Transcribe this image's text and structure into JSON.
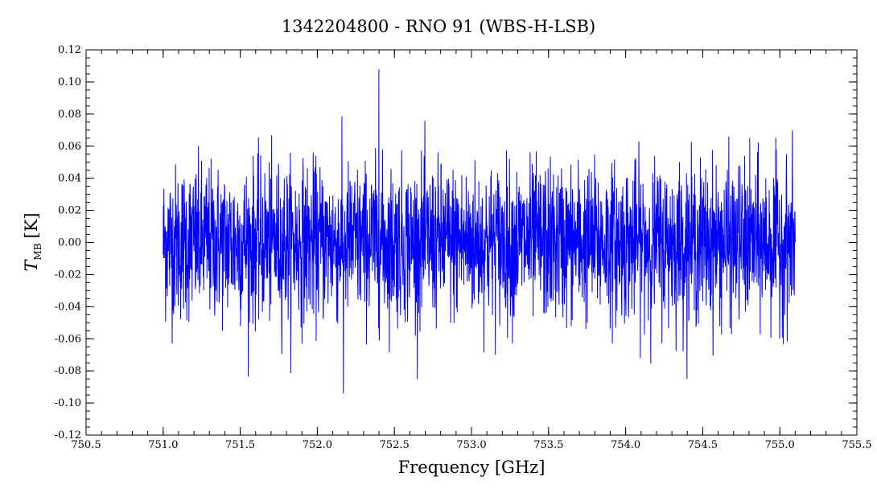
{
  "chart_data": {
    "type": "line",
    "title": "1342204800 - RNO 91 (WBS-H-LSB)",
    "xlabel": "Frequency [GHz]",
    "ylabel_main": "T",
    "ylabel_sub": "MB",
    "ylabel_unit": "[K]",
    "xlim": [
      750.5,
      755.5
    ],
    "ylim": [
      -0.12,
      0.12
    ],
    "x_ticks": [
      "750.5",
      "751.0",
      "751.5",
      "752.0",
      "752.5",
      "753.0",
      "753.5",
      "754.0",
      "754.5",
      "755.0",
      "755.5"
    ],
    "y_ticks": [
      "-0.12",
      "-0.10",
      "-0.08",
      "-0.06",
      "-0.04",
      "-0.02",
      "0.00",
      "0.02",
      "0.04",
      "0.06",
      "0.08",
      "0.10",
      "0.12"
    ],
    "x_tick_values": [
      750.5,
      751.0,
      751.5,
      752.0,
      752.5,
      753.0,
      753.5,
      754.0,
      754.5,
      755.0,
      755.5
    ],
    "y_tick_values": [
      -0.12,
      -0.1,
      -0.08,
      -0.06,
      -0.04,
      -0.02,
      0.0,
      0.02,
      0.04,
      0.06,
      0.08,
      0.1,
      0.12
    ],
    "x_minor_step": 0.1,
    "y_minor_step": 0.005,
    "series": [
      {
        "color": "#0000ff",
        "x_start": 751.0,
        "x_end": 755.1,
        "noise_rms": 0.024,
        "max_value": 0.108,
        "min_value": -0.094
      }
    ],
    "grid": false,
    "legend": "none"
  }
}
